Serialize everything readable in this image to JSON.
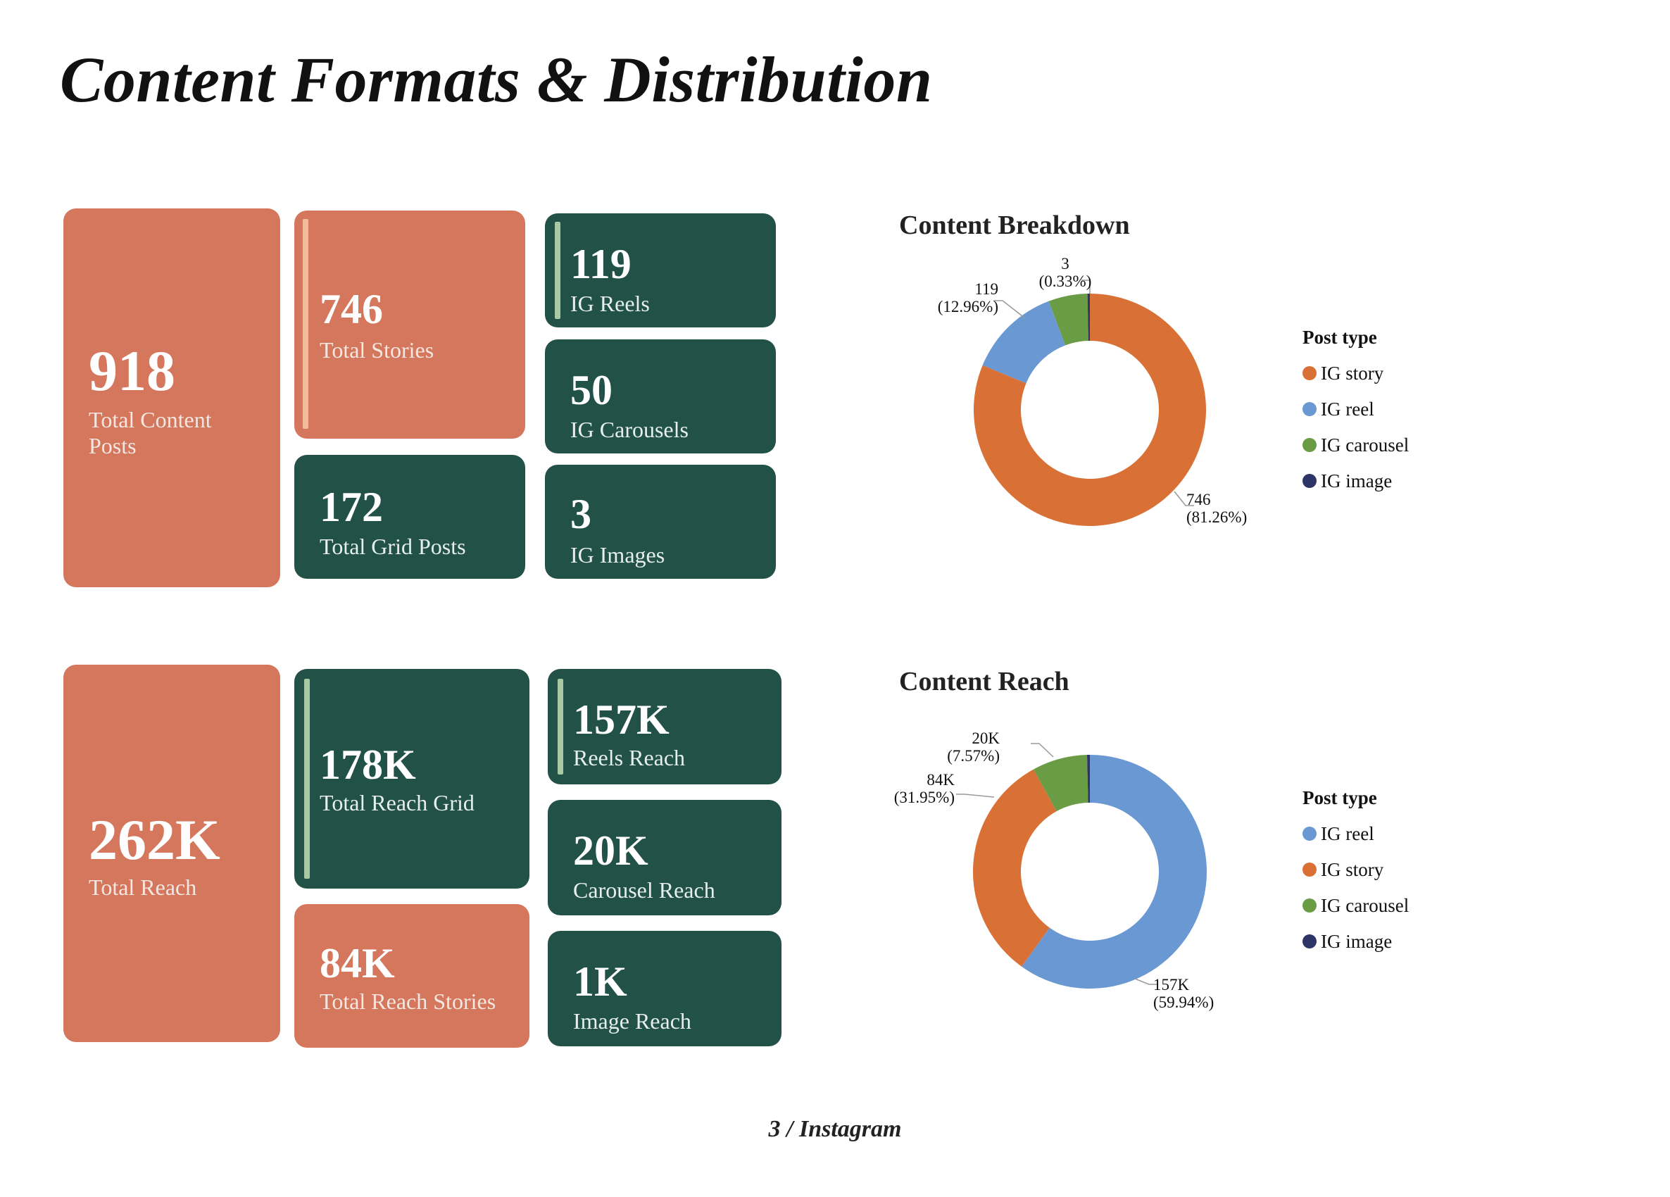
{
  "page": {
    "title": "Content Formats & Distribution",
    "footer": "3 / Instagram"
  },
  "colors": {
    "orange": "#d4775d",
    "green": "#225148",
    "story": "#d97136",
    "reel": "#6a98d2",
    "carousel": "#6a9c45",
    "image": "#2d3566"
  },
  "posts": {
    "total": {
      "value": "918",
      "label": "Total Content Posts"
    },
    "stories": {
      "value": "746",
      "label": "Total Stories"
    },
    "grid": {
      "value": "172",
      "label": "Total Grid Posts"
    },
    "reels": {
      "value": "119",
      "label": "IG Reels"
    },
    "carousels": {
      "value": "50",
      "label": "IG Carousels"
    },
    "images": {
      "value": "3",
      "label": "IG Images"
    }
  },
  "reach": {
    "total": {
      "value": "262K",
      "label": "Total Reach"
    },
    "grid": {
      "value": "178K",
      "label": "Total Reach Grid"
    },
    "stories": {
      "value": "84K",
      "label": "Total Reach Stories"
    },
    "reels": {
      "value": "157K",
      "label": "Reels Reach"
    },
    "carousel": {
      "value": "20K",
      "label": "Carousel Reach"
    },
    "image": {
      "value": "1K",
      "label": "Image Reach"
    }
  },
  "chart_data": [
    {
      "type": "pie",
      "title": "Content Breakdown",
      "legend_title": "Post type",
      "legend_position": "right",
      "slices": [
        {
          "name": "IG story",
          "value": 746,
          "label": "746",
          "pct": "(81.26%)"
        },
        {
          "name": "IG reel",
          "value": 119,
          "label": "119",
          "pct": "(12.96%)"
        },
        {
          "name": "IG carousel",
          "value": 50,
          "label": "",
          "pct": ""
        },
        {
          "name": "IG image",
          "value": 3,
          "label": "3",
          "pct": "(0.33%)"
        }
      ]
    },
    {
      "type": "pie",
      "title": "Content Reach",
      "legend_title": "Post type",
      "legend_position": "right",
      "slices": [
        {
          "name": "IG reel",
          "value": 157,
          "label": "157K",
          "pct": "(59.94%)"
        },
        {
          "name": "IG story",
          "value": 84,
          "label": "84K",
          "pct": "(31.95%)"
        },
        {
          "name": "IG carousel",
          "value": 20,
          "label": "20K",
          "pct": "(7.57%)"
        },
        {
          "name": "IG image",
          "value": 1,
          "label": "",
          "pct": ""
        }
      ]
    }
  ]
}
